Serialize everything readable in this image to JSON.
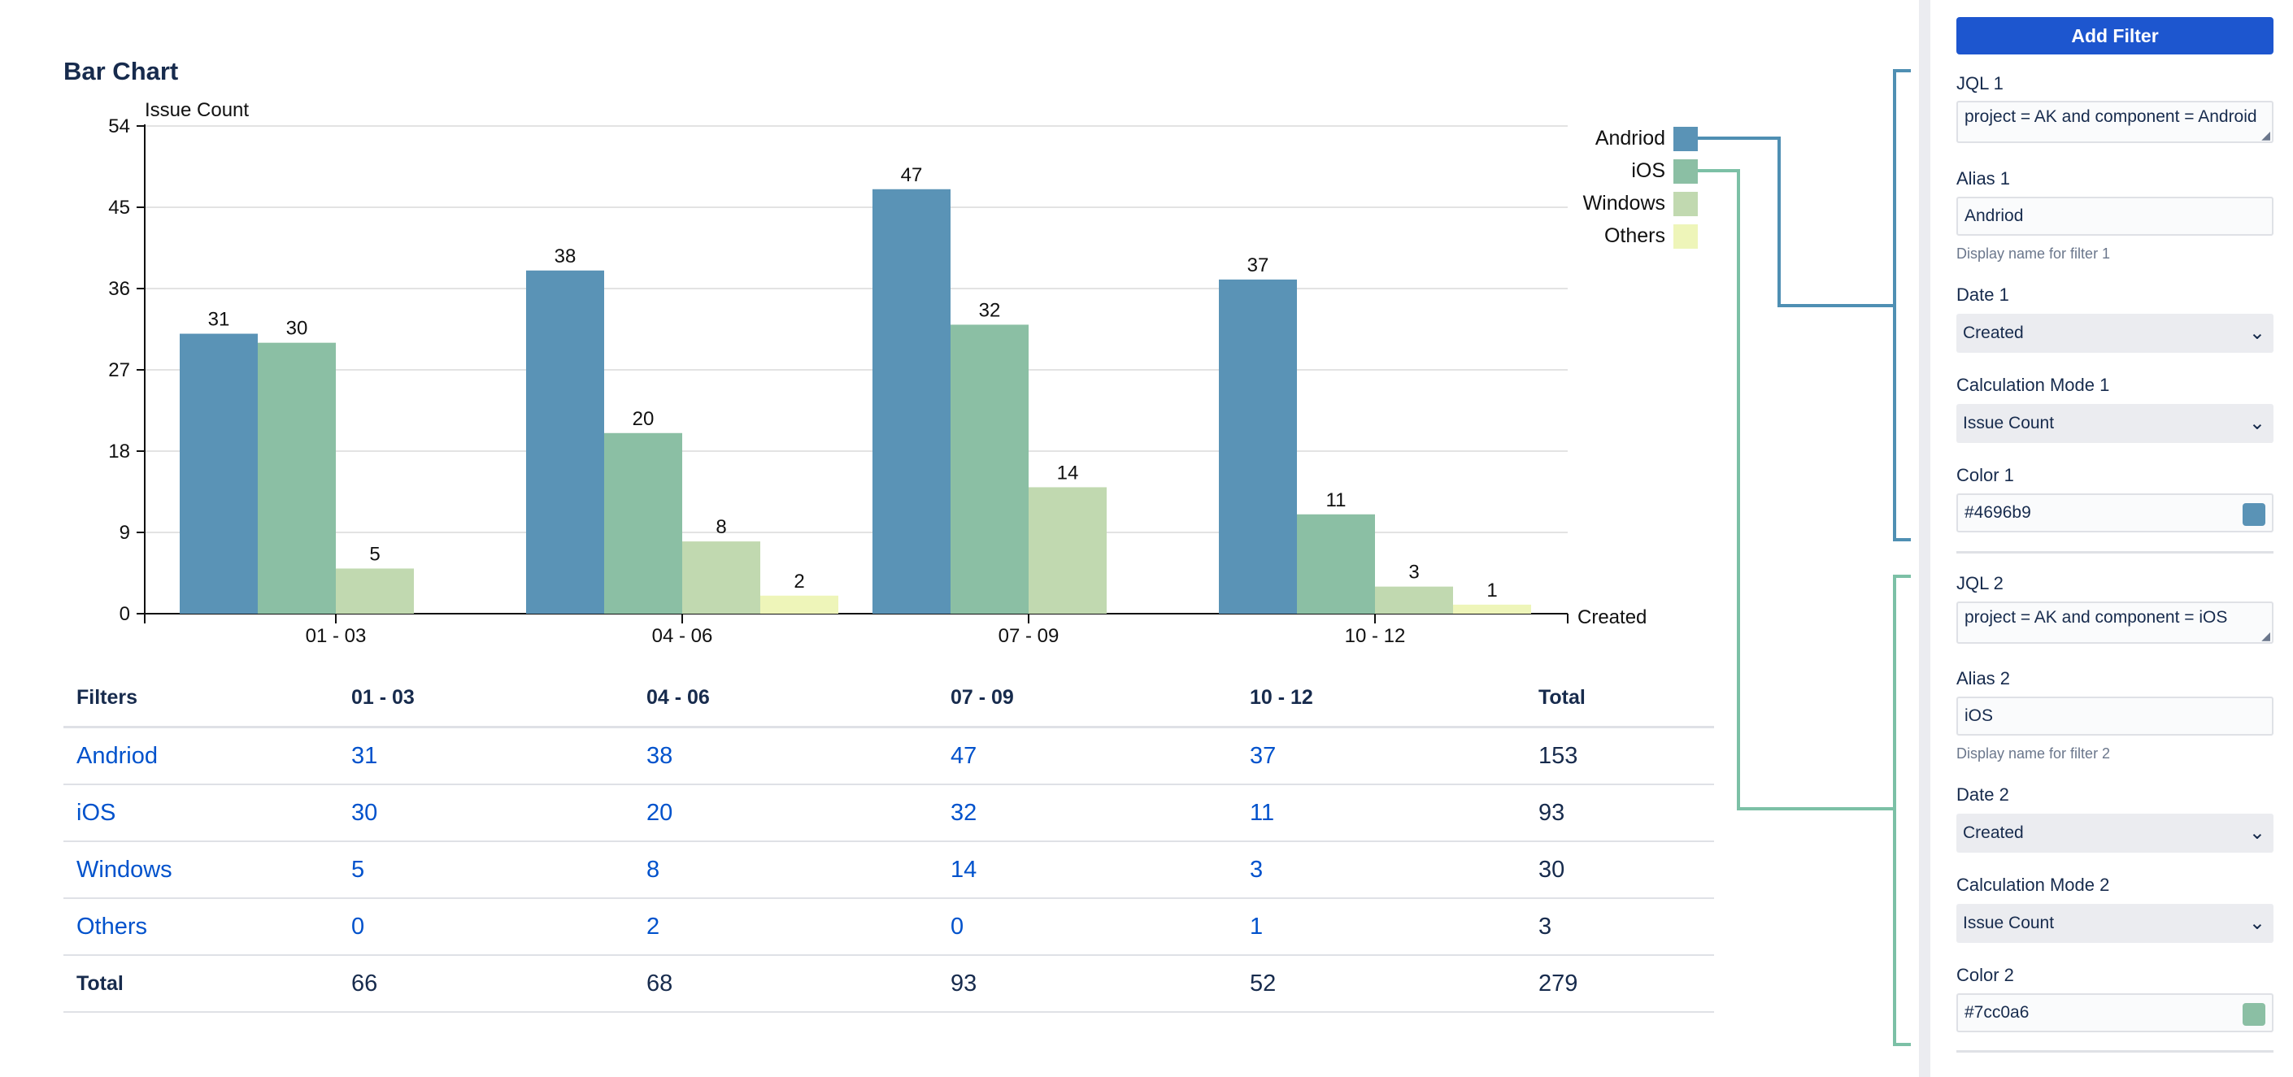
{
  "chart_data": {
    "type": "bar",
    "title": "Bar Chart",
    "ylabel": "Issue Count",
    "xlabel": "Created",
    "ylim": [
      0,
      54
    ],
    "yticks": [
      0,
      9,
      18,
      27,
      36,
      45,
      54
    ],
    "categories": [
      "01 - 03",
      "04 - 06",
      "07 - 09",
      "10 - 12"
    ],
    "series": [
      {
        "name": "Andriod",
        "color": "#5a93b6",
        "values": [
          31,
          38,
          47,
          37
        ],
        "labels": [
          "31",
          "38",
          "47",
          "37"
        ]
      },
      {
        "name": "iOS",
        "color": "#8bbfa4",
        "values": [
          30,
          20,
          32,
          11
        ],
        "labels": [
          "30",
          "20",
          "32",
          "11"
        ]
      },
      {
        "name": "Windows",
        "color": "#c1d9b0",
        "values": [
          5,
          8,
          14,
          3
        ],
        "labels": [
          "5",
          "8",
          "14",
          "3"
        ]
      },
      {
        "name": "Others",
        "color": "#eef5b9",
        "values": [
          0,
          2,
          0,
          1
        ],
        "labels": [
          "",
          "2",
          "",
          "1"
        ]
      }
    ],
    "legend_position": "top-right"
  },
  "table": {
    "headers": [
      "Filters",
      "01 - 03",
      "04 - 06",
      "07 - 09",
      "10 - 12",
      "Total"
    ],
    "rows": [
      [
        "Andriod",
        "31",
        "38",
        "47",
        "37",
        "153"
      ],
      [
        "iOS",
        "30",
        "20",
        "32",
        "11",
        "93"
      ],
      [
        "Windows",
        "5",
        "8",
        "14",
        "3",
        "30"
      ],
      [
        "Others",
        "0",
        "2",
        "0",
        "1",
        "3"
      ]
    ],
    "total_row": [
      "Total",
      "66",
      "68",
      "93",
      "52",
      "279"
    ]
  },
  "panel": {
    "add_filter_label": "Add Filter",
    "filter1": {
      "jql_label": "JQL 1",
      "jql_value": "project = AK and component = Android",
      "alias_label": "Alias 1",
      "alias_value": "Andriod",
      "alias_help": "Display name for filter 1",
      "date_label": "Date 1",
      "date_value": "Created",
      "calc_label": "Calculation Mode 1",
      "calc_value": "Issue Count",
      "color_label": "Color 1",
      "color_value": "#4696b9"
    },
    "filter2": {
      "jql_label": "JQL 2",
      "jql_value": "project = AK and component = iOS",
      "alias_label": "Alias 2",
      "alias_value": "iOS",
      "alias_help": "Display name for filter 2",
      "date_label": "Date 2",
      "date_value": "Created",
      "calc_label": "Calculation Mode 2",
      "calc_value": "Issue Count",
      "color_label": "Color 2",
      "color_value": "#7cc0a6"
    }
  },
  "colors": {
    "connector_1": "#4f8fb3",
    "connector_2": "#7cc0a6",
    "swatch_1": "#5a93b6",
    "swatch_2": "#8bbfa4"
  }
}
